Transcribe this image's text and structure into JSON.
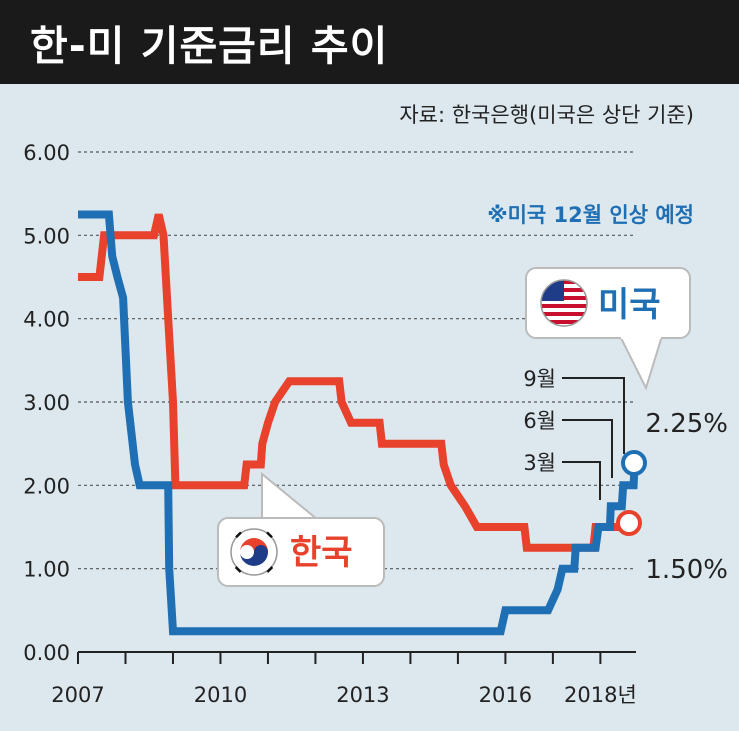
{
  "title": "한-미 기준금리 추이",
  "source": "자료: 한국은행(미국은 상단 기준)",
  "note": "※미국 12월 인상 예정",
  "colors": {
    "us": "#1f6fb4",
    "korea": "#e8412c",
    "background": "#dce8ee",
    "title_bg": "#1a1a1a",
    "note": "#1f6fb4"
  },
  "legend": {
    "us_label": "미국",
    "korea_label": "한국"
  },
  "callouts": [
    "9월",
    "6월",
    "3월"
  ],
  "end_labels": {
    "us": "2.25%",
    "korea": "1.50%"
  },
  "x_ticks": [
    "2007",
    "2010",
    "2013",
    "2016",
    "2018년"
  ],
  "y_ticks": [
    "0.00",
    "1.00",
    "2.00",
    "3.00",
    "4.00",
    "5.00",
    "6.00"
  ],
  "chart_data": {
    "type": "line",
    "title": "한-미 기준금리 추이",
    "ylim": [
      0,
      6
    ],
    "xlim": [
      2007.0,
      2018.75
    ],
    "grid": true,
    "series": [
      {
        "name": "미국",
        "points": [
          [
            2007.0,
            5.25
          ],
          [
            2007.65,
            5.25
          ],
          [
            2007.72,
            4.75
          ],
          [
            2007.83,
            4.5
          ],
          [
            2007.95,
            4.25
          ],
          [
            2008.05,
            3.0
          ],
          [
            2008.2,
            2.25
          ],
          [
            2008.3,
            2.0
          ],
          [
            2008.9,
            2.0
          ],
          [
            2008.92,
            1.0
          ],
          [
            2009.0,
            0.25
          ],
          [
            2015.9,
            0.25
          ],
          [
            2016.0,
            0.5
          ],
          [
            2016.9,
            0.5
          ],
          [
            2017.1,
            0.75
          ],
          [
            2017.2,
            1.0
          ],
          [
            2017.45,
            1.0
          ],
          [
            2017.48,
            1.25
          ],
          [
            2017.9,
            1.25
          ],
          [
            2017.96,
            1.5
          ],
          [
            2018.2,
            1.5
          ],
          [
            2018.22,
            1.75
          ],
          [
            2018.45,
            1.75
          ],
          [
            2018.48,
            2.0
          ],
          [
            2018.7,
            2.0
          ],
          [
            2018.72,
            2.25
          ]
        ]
      },
      {
        "name": "한국",
        "points": [
          [
            2007.0,
            4.5
          ],
          [
            2007.45,
            4.5
          ],
          [
            2007.55,
            5.0
          ],
          [
            2008.6,
            5.0
          ],
          [
            2008.7,
            5.25
          ],
          [
            2008.8,
            5.0
          ],
          [
            2008.9,
            4.0
          ],
          [
            2009.0,
            3.0
          ],
          [
            2009.05,
            2.0
          ],
          [
            2010.5,
            2.0
          ],
          [
            2010.55,
            2.25
          ],
          [
            2010.85,
            2.25
          ],
          [
            2010.88,
            2.5
          ],
          [
            2011.0,
            2.75
          ],
          [
            2011.15,
            3.0
          ],
          [
            2011.45,
            3.25
          ],
          [
            2012.5,
            3.25
          ],
          [
            2012.55,
            3.0
          ],
          [
            2012.75,
            2.75
          ],
          [
            2013.35,
            2.75
          ],
          [
            2013.4,
            2.5
          ],
          [
            2014.65,
            2.5
          ],
          [
            2014.7,
            2.25
          ],
          [
            2014.85,
            2.0
          ],
          [
            2015.15,
            1.75
          ],
          [
            2015.4,
            1.5
          ],
          [
            2016.4,
            1.5
          ],
          [
            2016.45,
            1.25
          ],
          [
            2017.85,
            1.25
          ],
          [
            2017.9,
            1.5
          ],
          [
            2018.75,
            1.5
          ]
        ]
      }
    ]
  }
}
